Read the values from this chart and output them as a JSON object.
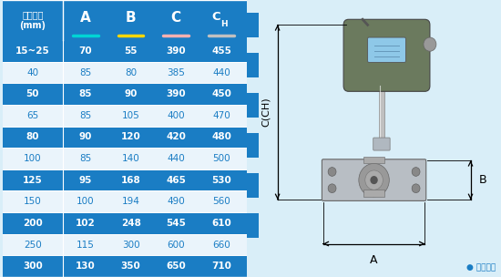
{
  "headers": [
    "仪表口径\n(mm)",
    "A",
    "B",
    "C",
    "CH"
  ],
  "rows": [
    [
      "15~25",
      "70",
      "55",
      "390",
      "455"
    ],
    [
      "40",
      "85",
      "80",
      "385",
      "440"
    ],
    [
      "50",
      "85",
      "90",
      "390",
      "450"
    ],
    [
      "65",
      "85",
      "105",
      "400",
      "470"
    ],
    [
      "80",
      "90",
      "120",
      "420",
      "480"
    ],
    [
      "100",
      "85",
      "140",
      "440",
      "500"
    ],
    [
      "125",
      "95",
      "168",
      "465",
      "530"
    ],
    [
      "150",
      "100",
      "194",
      "490",
      "560"
    ],
    [
      "200",
      "102",
      "248",
      "545",
      "610"
    ],
    [
      "250",
      "115",
      "300",
      "600",
      "660"
    ],
    [
      "300",
      "130",
      "350",
      "650",
      "710"
    ]
  ],
  "dark_row_bg": "#1a7dc4",
  "light_row_bg": "#eaf4fb",
  "header_bg": "#1a7dc4",
  "text_white": "#ffffff",
  "text_blue": "#1a7dc4",
  "fig_bg": "#d9eef8",
  "underline_A": "#00d4d4",
  "underline_B": "#ffd700",
  "underline_C": "#ffb0b0",
  "underline_CH": "#c0c0c0",
  "dark_rows": [
    0,
    2,
    4,
    6,
    8,
    10
  ],
  "col_widths": [
    1.25,
    0.9375,
    0.9375,
    0.9375,
    0.9375
  ],
  "total_width": 5.0625
}
